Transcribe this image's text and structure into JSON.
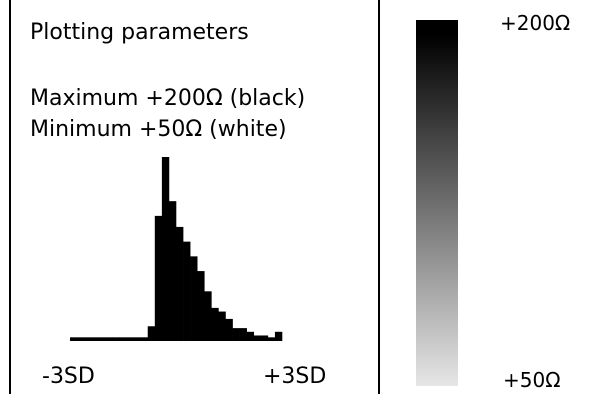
{
  "panel": {
    "title": "Plotting parameters",
    "maximum_label": "Maximum +200Ω (black)",
    "minimum_label": "Minimum +50Ω (white)"
  },
  "chart_data": [
    {
      "type": "bar",
      "title": "",
      "xlabel": "",
      "ylabel": "",
      "x_axis": {
        "min_label": "-3SD",
        "max_label": "+3SD",
        "range": [
          -3,
          3
        ]
      },
      "bins": [
        {
          "x": -2.9,
          "value": 2
        },
        {
          "x": -2.7,
          "value": 2
        },
        {
          "x": -2.5,
          "value": 2
        },
        {
          "x": -2.3,
          "value": 2
        },
        {
          "x": -2.1,
          "value": 2
        },
        {
          "x": -1.9,
          "value": 2
        },
        {
          "x": -1.7,
          "value": 2
        },
        {
          "x": -1.5,
          "value": 2
        },
        {
          "x": -1.3,
          "value": 2
        },
        {
          "x": -1.1,
          "value": 2
        },
        {
          "x": -0.9,
          "value": 2
        },
        {
          "x": -0.7,
          "value": 8
        },
        {
          "x": -0.5,
          "value": 68
        },
        {
          "x": -0.3,
          "value": 100
        },
        {
          "x": -0.1,
          "value": 76
        },
        {
          "x": 0.1,
          "value": 62
        },
        {
          "x": 0.3,
          "value": 54
        },
        {
          "x": 0.5,
          "value": 46
        },
        {
          "x": 0.7,
          "value": 38
        },
        {
          "x": 0.9,
          "value": 27
        },
        {
          "x": 1.1,
          "value": 18
        },
        {
          "x": 1.3,
          "value": 16
        },
        {
          "x": 1.5,
          "value": 12
        },
        {
          "x": 1.7,
          "value": 7
        },
        {
          "x": 1.9,
          "value": 7
        },
        {
          "x": 2.1,
          "value": 5
        },
        {
          "x": 2.3,
          "value": 3
        },
        {
          "x": 2.5,
          "value": 3
        },
        {
          "x": 2.7,
          "value": 2
        },
        {
          "x": 2.9,
          "value": 5
        }
      ],
      "bar_color": "#000000"
    },
    {
      "type": "heatmap",
      "colorbar": {
        "max_label": "+200Ω",
        "min_label": "+50Ω",
        "max_value": 200,
        "min_value": 50,
        "max_color": "#000000",
        "min_color": "#e6e6e6"
      }
    }
  ]
}
